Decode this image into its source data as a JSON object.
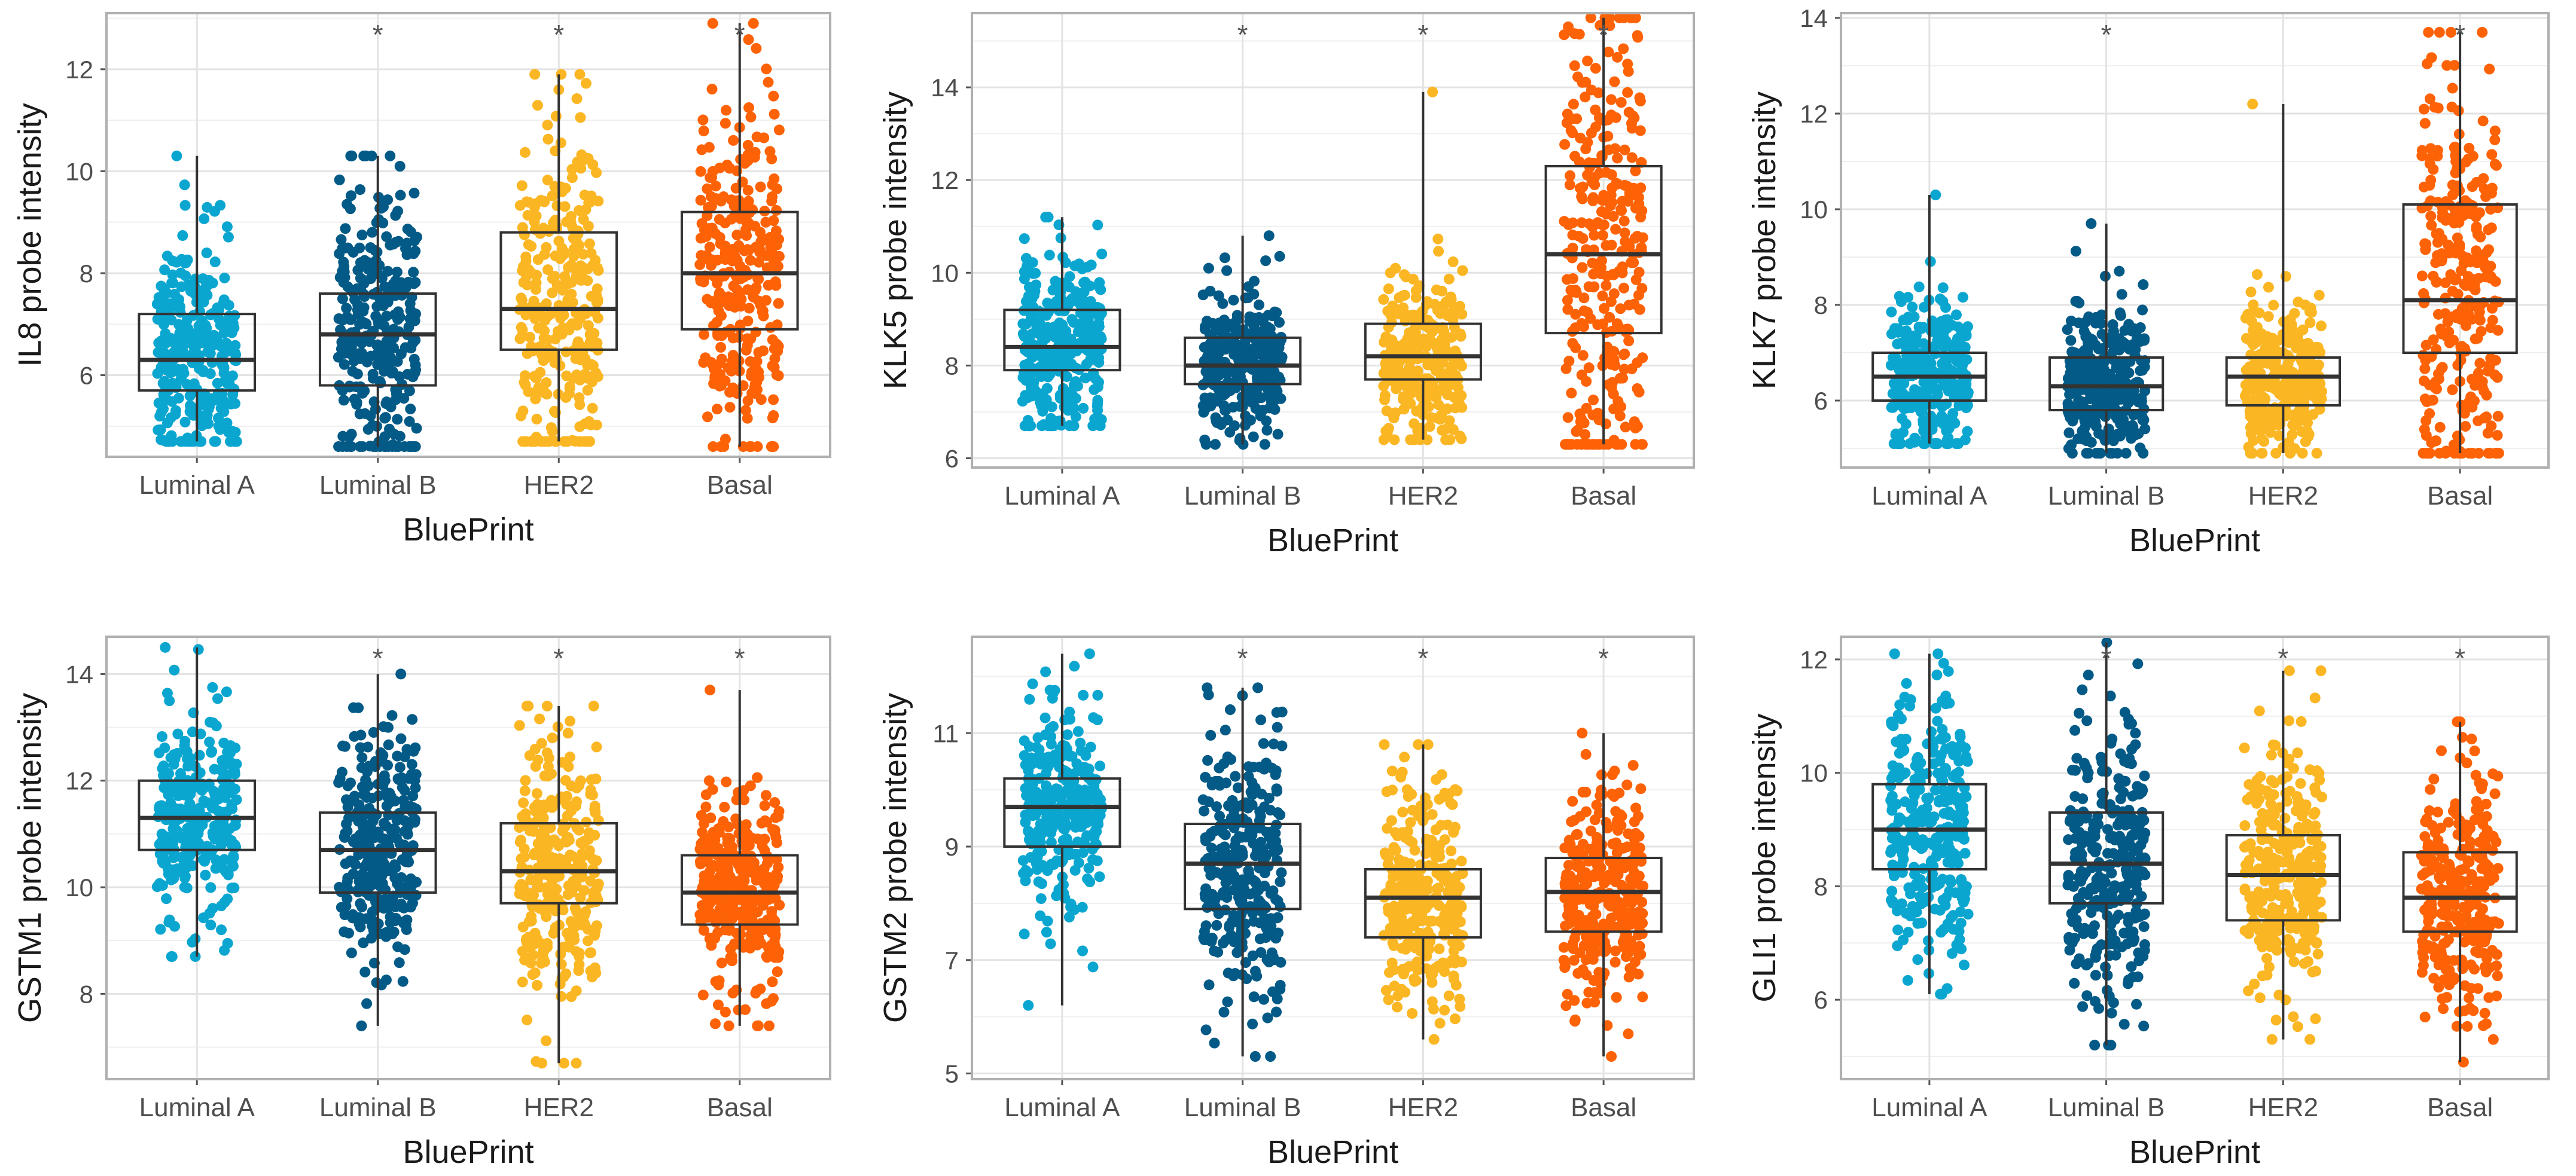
{
  "colors": {
    "Luminal A": "#0aa6d0",
    "Luminal B": "#035a86",
    "HER2": "#fbb623",
    "Basal": "#fe6206",
    "box": "#333333",
    "grid": "#e3e3e3",
    "panel_border": "#b0b0b0",
    "text": "#4d4d4d"
  },
  "chart_data": [
    {
      "type": "boxplot",
      "ylabel": "IL8 probe intensity",
      "xlabel": "BluePrint",
      "categories": [
        "Luminal A",
        "Luminal B",
        "HER2",
        "Basal"
      ],
      "ylim": [
        4.4,
        13.1
      ],
      "yticks": [
        6,
        8,
        10,
        12
      ],
      "significance": [
        "",
        "*",
        "*",
        "*"
      ],
      "boxes": [
        {
          "min": 4.7,
          "q1": 5.7,
          "median": 6.3,
          "q3": 7.2,
          "max": 10.3
        },
        {
          "min": 4.6,
          "q1": 5.8,
          "median": 6.8,
          "q3": 7.6,
          "max": 10.3
        },
        {
          "min": 4.7,
          "q1": 6.5,
          "median": 7.3,
          "q3": 8.8,
          "max": 11.9
        },
        {
          "min": 4.6,
          "q1": 6.9,
          "median": 8.0,
          "q3": 9.2,
          "max": 12.9
        }
      ]
    },
    {
      "type": "boxplot",
      "ylabel": "KLK5 probe intensity",
      "xlabel": "BluePrint",
      "categories": [
        "Luminal A",
        "Luminal B",
        "HER2",
        "Basal"
      ],
      "ylim": [
        5.8,
        15.6
      ],
      "yticks": [
        6,
        8,
        10,
        12,
        14
      ],
      "significance": [
        "",
        "*",
        "*",
        "*"
      ],
      "boxes": [
        {
          "min": 6.7,
          "q1": 7.9,
          "median": 8.4,
          "q3": 9.2,
          "max": 11.2
        },
        {
          "min": 6.3,
          "q1": 7.6,
          "median": 8.0,
          "q3": 8.6,
          "max": 10.8
        },
        {
          "min": 6.4,
          "q1": 7.7,
          "median": 8.2,
          "q3": 8.9,
          "max": 13.9
        },
        {
          "min": 6.3,
          "q1": 8.7,
          "median": 10.4,
          "q3": 12.3,
          "max": 15.5
        }
      ]
    },
    {
      "type": "boxplot",
      "ylabel": "KLK7 probe intensity",
      "xlabel": "BluePrint",
      "categories": [
        "Luminal A",
        "Luminal B",
        "HER2",
        "Basal"
      ],
      "ylim": [
        4.6,
        14.1
      ],
      "yticks": [
        6,
        8,
        10,
        12,
        14
      ],
      "significance": [
        "",
        "*",
        "",
        "*"
      ],
      "boxes": [
        {
          "min": 5.1,
          "q1": 6.0,
          "median": 6.5,
          "q3": 7.0,
          "max": 10.3
        },
        {
          "min": 4.9,
          "q1": 5.8,
          "median": 6.3,
          "q3": 6.9,
          "max": 9.7
        },
        {
          "min": 4.9,
          "q1": 5.9,
          "median": 6.5,
          "q3": 6.9,
          "max": 12.2
        },
        {
          "min": 4.9,
          "q1": 7.0,
          "median": 8.1,
          "q3": 10.1,
          "max": 13.7
        }
      ]
    },
    {
      "type": "boxplot",
      "ylabel": "GSTM1 probe intensity",
      "xlabel": "BluePrint",
      "categories": [
        "Luminal A",
        "Luminal B",
        "HER2",
        "Basal"
      ],
      "ylim": [
        6.4,
        14.7
      ],
      "yticks": [
        8,
        10,
        12,
        14
      ],
      "significance": [
        "",
        "*",
        "*",
        "*"
      ],
      "boxes": [
        {
          "min": 8.7,
          "q1": 10.7,
          "median": 11.3,
          "q3": 12.0,
          "max": 14.5
        },
        {
          "min": 7.4,
          "q1": 9.9,
          "median": 10.7,
          "q3": 11.4,
          "max": 14.0
        },
        {
          "min": 6.7,
          "q1": 9.7,
          "median": 10.3,
          "q3": 11.2,
          "max": 13.4
        },
        {
          "min": 7.4,
          "q1": 9.3,
          "median": 9.9,
          "q3": 10.6,
          "max": 13.7
        }
      ]
    },
    {
      "type": "boxplot",
      "ylabel": "GSTM2 probe intensity",
      "xlabel": "BluePrint",
      "categories": [
        "Luminal A",
        "Luminal B",
        "HER2",
        "Basal"
      ],
      "ylim": [
        4.9,
        12.7
      ],
      "yticks": [
        5,
        7,
        9,
        11
      ],
      "significance": [
        "",
        "*",
        "*",
        "*"
      ],
      "boxes": [
        {
          "min": 6.2,
          "q1": 9.0,
          "median": 9.7,
          "q3": 10.2,
          "max": 12.4
        },
        {
          "min": 5.3,
          "q1": 7.9,
          "median": 8.7,
          "q3": 9.4,
          "max": 11.8
        },
        {
          "min": 5.6,
          "q1": 7.4,
          "median": 8.1,
          "q3": 8.6,
          "max": 10.8
        },
        {
          "min": 5.3,
          "q1": 7.5,
          "median": 8.2,
          "q3": 8.8,
          "max": 11.0
        }
      ]
    },
    {
      "type": "boxplot",
      "ylabel": "GLI1 probe intensity",
      "xlabel": "BluePrint",
      "categories": [
        "Luminal A",
        "Luminal B",
        "HER2",
        "Basal"
      ],
      "ylim": [
        4.6,
        12.4
      ],
      "yticks": [
        6,
        8,
        10,
        12
      ],
      "significance": [
        "",
        "*",
        "*",
        "*"
      ],
      "boxes": [
        {
          "min": 6.1,
          "q1": 8.3,
          "median": 9.0,
          "q3": 9.8,
          "max": 12.1
        },
        {
          "min": 5.2,
          "q1": 7.7,
          "median": 8.4,
          "q3": 9.3,
          "max": 12.3
        },
        {
          "min": 5.3,
          "q1": 7.4,
          "median": 8.2,
          "q3": 8.9,
          "max": 11.8
        },
        {
          "min": 4.9,
          "q1": 7.2,
          "median": 7.8,
          "q3": 8.6,
          "max": 10.9
        }
      ]
    }
  ]
}
